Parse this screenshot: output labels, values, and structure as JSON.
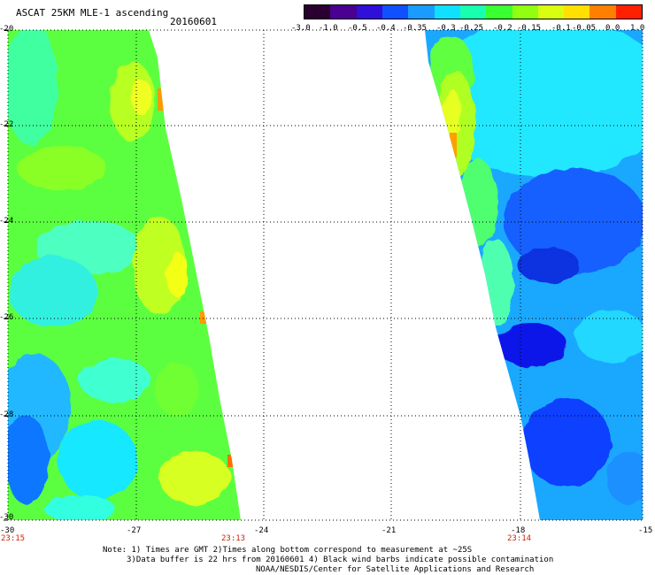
{
  "header": {
    "title": "ASCAT 25KM MLE-1 ascending",
    "date": "20160601"
  },
  "colorbar": {
    "labels": [
      "-3.0",
      "-1.0",
      "-0.5",
      "-0.4",
      "-0.35",
      "-0.3",
      "-0.25",
      "-0.2",
      "-0.15",
      "-0.1",
      "-0.05",
      "0.0",
      "1.0"
    ],
    "colors": [
      "#2a0030",
      "#4a0090",
      "#3010d8",
      "#1050ff",
      "#1a9cff",
      "#10e0ff",
      "#18ffb0",
      "#3aff30",
      "#90ff10",
      "#d8ff10",
      "#ffe000",
      "#ff8000",
      "#ff2000"
    ]
  },
  "map": {
    "lon_range": [
      -30,
      -15
    ],
    "lat_range": [
      -30,
      -20
    ],
    "x_ticks": [
      "-30",
      "-27",
      "-24",
      "-21",
      "-18",
      "-15"
    ],
    "y_ticks": [
      "-20",
      "-22",
      "-24",
      "-26",
      "-28",
      "-30"
    ],
    "times": [
      "23:15",
      "23:13",
      "23:14"
    ]
  },
  "notes": {
    "line1": "Note: 1) Times are GMT 2)Times along bottom correspond to measurement at ~25S",
    "line2": "3)Data buffer is 22 hrs from 20160601 4) Black wind barbs indicate possible contamination",
    "line3": "NOAA/NESDIS/Center for Satellite Applications and Research"
  }
}
